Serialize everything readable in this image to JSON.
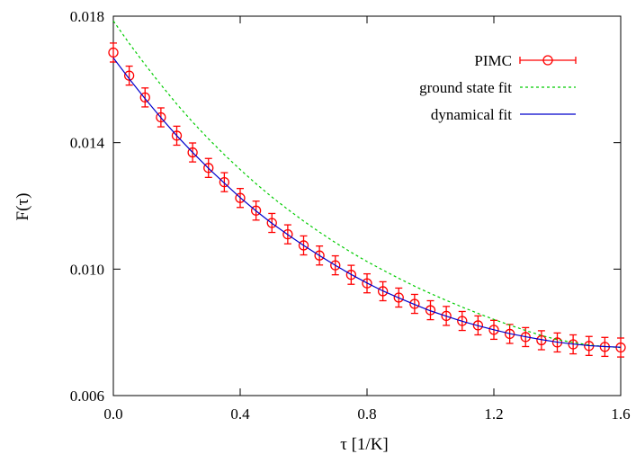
{
  "chart_data": {
    "type": "line",
    "xlabel": "τ [1/K]",
    "ylabel": "F(τ)",
    "xlim": [
      0.0,
      1.6
    ],
    "ylim": [
      0.006,
      0.018
    ],
    "x_ticks": [
      0.0,
      0.4,
      0.8,
      1.2,
      1.6
    ],
    "x_tick_labels": [
      "0.0",
      "0.4",
      "0.8",
      "1.2",
      "1.6"
    ],
    "y_ticks": [
      0.006,
      0.01,
      0.014,
      0.018
    ],
    "y_tick_labels": [
      "0.006",
      "0.010",
      "0.014",
      "0.018"
    ],
    "grid": false,
    "legend_position": "top-right",
    "series": [
      {
        "name": "PIMC",
        "kind": "points-with-errorbars",
        "color": "#ff0000",
        "x": [
          0.0,
          0.05,
          0.1,
          0.15,
          0.2,
          0.25,
          0.3,
          0.35,
          0.4,
          0.45,
          0.5,
          0.55,
          0.6,
          0.65,
          0.7,
          0.75,
          0.8,
          0.85,
          0.9,
          0.95,
          1.0,
          1.05,
          1.1,
          1.15,
          1.2,
          1.25,
          1.3,
          1.35,
          1.4,
          1.45,
          1.5,
          1.55,
          1.6
        ],
        "y": [
          0.01685,
          0.01612,
          0.01543,
          0.0148,
          0.01422,
          0.01369,
          0.0132,
          0.01275,
          0.01225,
          0.01185,
          0.01146,
          0.0111,
          0.01075,
          0.01043,
          0.01012,
          0.00982,
          0.00955,
          0.0093,
          0.0091,
          0.0089,
          0.0087,
          0.00852,
          0.00836,
          0.00822,
          0.00808,
          0.00795,
          0.00785,
          0.00775,
          0.00768,
          0.00762,
          0.00757,
          0.00754,
          0.00752
        ],
        "yerr": [
          0.0003,
          0.0003,
          0.0003,
          0.0003,
          0.0003,
          0.0003,
          0.0003,
          0.0003,
          0.0003,
          0.0003,
          0.0003,
          0.0003,
          0.0003,
          0.0003,
          0.0003,
          0.0003,
          0.0003,
          0.0003,
          0.0003,
          0.0003,
          0.0003,
          0.0003,
          0.0003,
          0.0003,
          0.0003,
          0.0003,
          0.0003,
          0.0003,
          0.0003,
          0.0003,
          0.0003,
          0.0003,
          0.0003
        ]
      },
      {
        "name": "ground state fit",
        "kind": "dashed-line",
        "color": "#00cc00",
        "x": [
          0.0,
          0.05,
          0.1,
          0.15,
          0.2,
          0.25,
          0.3,
          0.35,
          0.4,
          0.45,
          0.5,
          0.55,
          0.6,
          0.65,
          0.7,
          0.75,
          0.8,
          0.85,
          0.9,
          0.95,
          1.0,
          1.05,
          1.1,
          1.15,
          1.2,
          1.25,
          1.3,
          1.35,
          1.4,
          1.45,
          1.5,
          1.55,
          1.6
        ],
        "y": [
          0.01785,
          0.01714,
          0.01647,
          0.01583,
          0.01522,
          0.01465,
          0.01412,
          0.01362,
          0.01315,
          0.0127,
          0.01228,
          0.01189,
          0.01152,
          0.01117,
          0.01084,
          0.01053,
          0.01024,
          0.00997,
          0.00971,
          0.00946,
          0.00923,
          0.00901,
          0.0088,
          0.0086,
          0.00841,
          0.00823,
          0.00806,
          0.0079,
          0.00777,
          0.00768,
          0.0076,
          0.00755,
          0.00752
        ]
      },
      {
        "name": "dynamical fit",
        "kind": "solid-line",
        "color": "#0000cc",
        "x": [
          0.0,
          0.05,
          0.1,
          0.15,
          0.2,
          0.25,
          0.3,
          0.35,
          0.4,
          0.45,
          0.5,
          0.55,
          0.6,
          0.65,
          0.7,
          0.75,
          0.8,
          0.85,
          0.9,
          0.95,
          1.0,
          1.05,
          1.1,
          1.15,
          1.2,
          1.25,
          1.3,
          1.35,
          1.4,
          1.45,
          1.5,
          1.55,
          1.6
        ],
        "y": [
          0.01668,
          0.01602,
          0.01539,
          0.01479,
          0.01422,
          0.01369,
          0.01319,
          0.01272,
          0.01226,
          0.01184,
          0.01145,
          0.01109,
          0.01075,
          0.01043,
          0.01012,
          0.00983,
          0.00956,
          0.00931,
          0.00909,
          0.00888,
          0.00868,
          0.00851,
          0.00835,
          0.00821,
          0.00808,
          0.00796,
          0.00786,
          0.00777,
          0.00769,
          0.00763,
          0.00758,
          0.00755,
          0.00753
        ]
      }
    ]
  }
}
